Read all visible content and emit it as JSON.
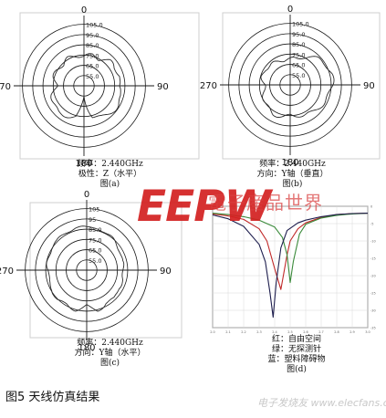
{
  "figure_title": "图5 天线仿真结果",
  "watermark": {
    "logo": "EEPW",
    "site_name": "電子産品世界",
    "url": "电子发烧友 www.elecfans.com"
  },
  "chart_data": [
    {
      "id": "a",
      "type": "polar",
      "angle_labels": [
        "0",
        "90",
        "180",
        "270"
      ],
      "radial_ticks": [
        "105.0",
        "95.0",
        "85.0",
        "75.0",
        "65.0",
        "55.0"
      ],
      "radial_values": [
        105,
        95,
        85,
        75,
        65,
        55
      ],
      "rlim": [
        45,
        110
      ],
      "caption": [
        "频率：2.440GHz",
        "极性：Z（水平）",
        "图(a)"
      ],
      "pattern": {
        "angles": [
          0,
          15,
          30,
          45,
          60,
          75,
          90,
          105,
          120,
          135,
          150,
          165,
          180,
          195,
          210,
          225,
          240,
          255,
          270,
          285,
          300,
          315,
          330,
          345
        ],
        "values": [
          74,
          76,
          75,
          80,
          79,
          82,
          78,
          83,
          84,
          82,
          80,
          76,
          55,
          77,
          79,
          81,
          79,
          77,
          72,
          75,
          76,
          74,
          76,
          75
        ]
      }
    },
    {
      "id": "b",
      "type": "polar",
      "angle_labels": [
        "0",
        "90",
        "180",
        "270"
      ],
      "radial_ticks": [
        "105.0",
        "95.0",
        "85.0",
        "75.0",
        "65.0",
        "55.0"
      ],
      "radial_values": [
        105,
        95,
        85,
        75,
        65,
        55
      ],
      "rlim": [
        45,
        110
      ],
      "caption": [
        "频率：2.440GHz",
        "方向：Y轴（垂直）",
        "图(b)"
      ],
      "pattern": {
        "angles": [
          0,
          15,
          30,
          45,
          60,
          75,
          90,
          105,
          120,
          135,
          150,
          165,
          180,
          195,
          210,
          225,
          240,
          255,
          270,
          285,
          300,
          315,
          330,
          345
        ],
        "values": [
          70,
          72,
          76,
          82,
          85,
          87,
          86,
          84,
          82,
          80,
          78,
          76,
          75,
          77,
          78,
          76,
          74,
          72,
          70,
          73,
          74,
          72,
          71,
          70
        ]
      }
    },
    {
      "id": "c",
      "type": "polar",
      "angle_labels": [
        "0",
        "90",
        "180",
        "270"
      ],
      "radial_ticks": [
        "105",
        "95",
        "85.0",
        "75.0",
        "65.0",
        "55.0"
      ],
      "radial_values": [
        105,
        95,
        85,
        75,
        65,
        55
      ],
      "rlim": [
        45,
        110
      ],
      "caption": [
        "频率：2.440GHz",
        "方向：Y轴（水平）",
        "图(c)"
      ],
      "pattern": {
        "angles": [
          0,
          15,
          30,
          45,
          60,
          75,
          90,
          105,
          120,
          135,
          150,
          165,
          180,
          195,
          210,
          225,
          240,
          255,
          270,
          285,
          300,
          315,
          330,
          345
        ],
        "values": [
          86,
          88,
          85,
          84,
          83,
          80,
          81,
          82,
          80,
          84,
          82,
          86,
          80,
          85,
          84,
          86,
          83,
          84,
          82,
          84,
          86,
          85,
          87,
          88
        ]
      }
    },
    {
      "id": "d",
      "type": "line",
      "xlim": [
        2.0,
        3.0
      ],
      "ylim": [
        -35,
        0
      ],
      "x_ticks": [
        2.0,
        2.1,
        2.2,
        2.3,
        2.4,
        2.5,
        2.6,
        2.7,
        2.8,
        2.9,
        3.0
      ],
      "y_ticks": [
        0,
        -5,
        -10,
        -15,
        -20,
        -25,
        -30,
        -35
      ],
      "grid": true,
      "caption": [
        "红：自由空间",
        "绿：无探测针",
        "蓝：塑料障碍物",
        "图(d)"
      ],
      "colors": {
        "red": "#c02828",
        "green": "#3a8a3a",
        "blue": "#1e1e4e"
      },
      "series": [
        {
          "key": "free_space",
          "color": "#c02828",
          "x": [
            2.0,
            2.1,
            2.2,
            2.3,
            2.35,
            2.4,
            2.44,
            2.48,
            2.5,
            2.55,
            2.6,
            2.7,
            2.8,
            2.9,
            3.0
          ],
          "y": [
            -2.2,
            -2.8,
            -3.8,
            -6.5,
            -10,
            -18,
            -24,
            -14,
            -10,
            -6.5,
            -4.8,
            -3.2,
            -2.4,
            -2.1,
            -2.0
          ]
        },
        {
          "key": "no_probe",
          "color": "#3a8a3a",
          "x": [
            2.0,
            2.1,
            2.2,
            2.3,
            2.4,
            2.45,
            2.48,
            2.5,
            2.52,
            2.56,
            2.6,
            2.7,
            2.8,
            2.9,
            3.0
          ],
          "y": [
            -2.0,
            -2.4,
            -3.0,
            -4.0,
            -6.0,
            -9.0,
            -14,
            -22,
            -16,
            -8,
            -5.2,
            -3.4,
            -2.6,
            -2.2,
            -2.0
          ]
        },
        {
          "key": "plastic_obstacle",
          "color": "#1e1e4e",
          "x": [
            2.0,
            2.1,
            2.2,
            2.3,
            2.34,
            2.37,
            2.39,
            2.41,
            2.44,
            2.48,
            2.55,
            2.6,
            2.7,
            2.8,
            2.9,
            3.0
          ],
          "y": [
            -2.5,
            -3.6,
            -5.8,
            -11,
            -16,
            -25,
            -32,
            -22,
            -12,
            -7,
            -4.8,
            -4,
            -3,
            -2.4,
            -2.1,
            -2.0
          ]
        }
      ]
    }
  ]
}
